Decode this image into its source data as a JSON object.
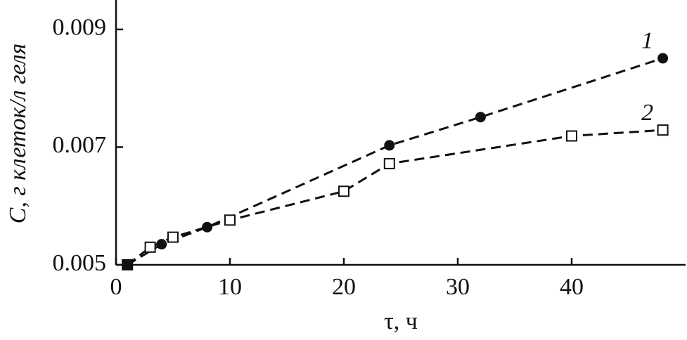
{
  "chart_data": {
    "type": "scatter",
    "xlabel": "τ, ч",
    "ylabel": "C, г клеток/л геля",
    "xlim": [
      0,
      50
    ],
    "xticks": [
      0,
      10,
      20,
      30,
      40
    ],
    "ylim": [
      0.005,
      0.0095
    ],
    "yticks": [
      0.005,
      0.007,
      0.009
    ],
    "series": [
      {
        "name": "1",
        "marker": "filled-circle",
        "color": "#111111",
        "x": [
          1,
          4,
          8,
          24,
          32,
          48
        ],
        "values": [
          0.005,
          0.00535,
          0.00564,
          0.00703,
          0.00751,
          0.00851
        ]
      },
      {
        "name": "2",
        "marker": "open-square",
        "color": "#111111",
        "x": [
          1,
          3,
          5,
          10,
          20,
          24,
          40,
          48
        ],
        "values": [
          0.005,
          0.0053,
          0.00547,
          0.00576,
          0.00625,
          0.00672,
          0.00719,
          0.00729
        ]
      }
    ]
  }
}
